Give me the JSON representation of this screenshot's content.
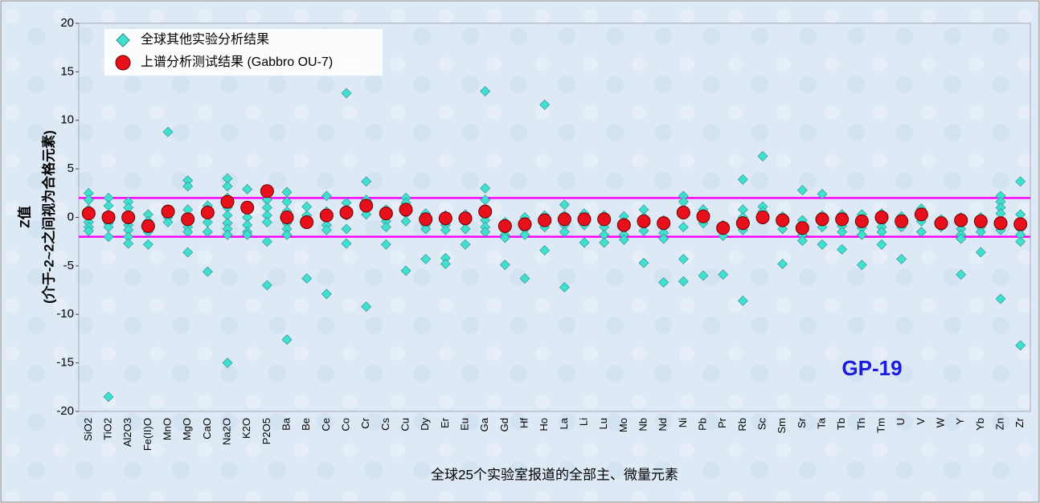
{
  "chart_data": {
    "type": "scatter",
    "ylabel": "Z值",
    "ylabel_note": "(介于-2~2之间视为合格元素)",
    "xlabel": "全球25个实验室报道的全部主、微量元素",
    "annotation": "GP-19",
    "categories": [
      "SiO2",
      "TiO2",
      "Al2O3",
      "Fe(II)O",
      "MnO",
      "MgO",
      "CaO",
      "Na2O",
      "K2O",
      "P2O5",
      "Ba",
      "Be",
      "Ce",
      "Co",
      "Cr",
      "Cs",
      "Cu",
      "Dy",
      "Er",
      "Eu",
      "Ga",
      "Gd",
      "Hf",
      "Ho",
      "La",
      "Li",
      "Lu",
      "Mo",
      "Nb",
      "Nd",
      "Ni",
      "Pb",
      "Pr",
      "Rb",
      "Sc",
      "Sm",
      "Sr",
      "Ta",
      "Tb",
      "Th",
      "Tm",
      "U",
      "V",
      "W",
      "Y",
      "Yb",
      "Zn",
      "Zr"
    ],
    "series": [
      {
        "name": "全球其他实验分析结果",
        "color": "#40e0d0",
        "marker": "diamond",
        "values": [
          [
            2.5,
            1.8,
            0.8,
            -0.5,
            -1.0,
            -1.4
          ],
          [
            2.0,
            1.2,
            -0.6,
            -1.0,
            -2.0,
            -18.5
          ],
          [
            1.6,
            1.0,
            -0.8,
            -1.3,
            -2.0,
            -2.7
          ],
          [
            0.3,
            -0.4,
            -1.5,
            -2.8
          ],
          [
            8.8,
            0.8,
            0.0,
            -0.5
          ],
          [
            3.8,
            3.2,
            0.8,
            -1.0,
            -1.5,
            -3.6
          ],
          [
            1.2,
            0.8,
            -0.5,
            -1.5,
            -5.6
          ],
          [
            4.0,
            3.2,
            2.0,
            1.0,
            0.2,
            -0.6,
            -1.2,
            -1.8,
            -15.0
          ],
          [
            2.9,
            1.0,
            0,
            -0.8,
            -1.5,
            -1.8
          ],
          [
            2.8,
            1.8,
            1.0,
            0.2,
            -0.5,
            -2.5,
            -7.0
          ],
          [
            2.6,
            1.6,
            0.6,
            -0.6,
            -1.2,
            -1.8,
            -12.6
          ],
          [
            1.1,
            0.2,
            -0.6,
            -6.3
          ],
          [
            2.2,
            0.6,
            -0.8,
            -1.3,
            -7.9
          ],
          [
            12.8,
            1.5,
            0.8,
            0.2,
            -1.2,
            -2.7
          ],
          [
            3.7,
            1.8,
            0.3,
            -9.2
          ],
          [
            0.8,
            0.4,
            -0.4,
            -1.0,
            -2.8
          ],
          [
            2.0,
            1.5,
            0.4,
            -0.4,
            -5.5
          ],
          [
            0.4,
            -0.3,
            -0.8,
            -1.2,
            -4.3
          ],
          [
            0.2,
            -0.3,
            -0.8,
            -1.3,
            -4.2,
            -4.8
          ],
          [
            0.3,
            -0.5,
            -1.2,
            -2.8
          ],
          [
            13.0,
            3.0,
            1.8,
            0.4,
            -0.3,
            -1.0,
            -1.5
          ],
          [
            -0.5,
            -1.2,
            -1.8,
            -2.1,
            -4.9
          ],
          [
            0,
            -0.6,
            -1.2,
            -1.8,
            -6.3
          ],
          [
            11.6,
            0.2,
            -0.5,
            -1.0,
            -3.4
          ],
          [
            1.3,
            0.2,
            -0.8,
            -1.5,
            -7.2
          ],
          [
            0.4,
            -0.3,
            -0.8,
            -2.6
          ],
          [
            0.2,
            -0.5,
            -1.0,
            -1.8,
            -2.6
          ],
          [
            0.1,
            -0.5,
            -1.2,
            -1.8,
            -2.3
          ],
          [
            0.8,
            0,
            -0.8,
            -1.4,
            -4.7
          ],
          [
            -0.3,
            -1.0,
            -1.6,
            -2.2,
            -6.7
          ],
          [
            2.2,
            1.6,
            0.3,
            -1.0,
            -4.3,
            -6.6
          ],
          [
            0.8,
            0.2,
            -0.2,
            -0.6,
            -6.0
          ],
          [
            -0.8,
            -1.4,
            -1.9,
            -5.9
          ],
          [
            3.9,
            0.8,
            0,
            -0.5,
            -1.3,
            -8.6
          ],
          [
            6.3,
            1.1,
            0.6,
            -0.2
          ],
          [
            0.1,
            -0.5,
            -1.2,
            -4.8
          ],
          [
            2.8,
            -0.3,
            -1.2,
            -1.8,
            -2.4
          ],
          [
            2.4,
            0.2,
            -0.4,
            -1.0,
            -2.8
          ],
          [
            0.3,
            -0.4,
            -0.9,
            -1.5,
            -3.3
          ],
          [
            0.3,
            -0.6,
            -1.1,
            -1.8,
            -4.9
          ],
          [
            0.4,
            -0.5,
            -1.0,
            -1.5,
            -2.8
          ],
          [
            0.1,
            -0.5,
            -1.0,
            -4.3
          ],
          [
            0.9,
            0.2,
            -0.4,
            -1.5
          ],
          [
            -0.2,
            -0.6,
            -1.0
          ],
          [
            0,
            -0.6,
            -1.2,
            -1.8,
            -2.2,
            -5.9
          ],
          [
            0,
            -0.4,
            -1.0,
            -1.5,
            -3.6
          ],
          [
            2.2,
            1.6,
            1.0,
            0.4,
            -0.6,
            -1.3,
            -8.4
          ],
          [
            3.7,
            0.3,
            -1.2,
            -1.8,
            -2.5,
            -13.2
          ]
        ]
      },
      {
        "name": "上谱分析测试结果 (Gabbro OU-7)",
        "color": "#e8101a",
        "marker": "circle",
        "values": [
          0.4,
          0,
          0,
          -0.9,
          0.6,
          -0.2,
          0.5,
          1.6,
          1.0,
          2.7,
          0,
          -0.5,
          0.2,
          0.5,
          1.2,
          0.4,
          0.8,
          -0.2,
          -0.1,
          -0.1,
          0.6,
          -0.9,
          -0.7,
          -0.3,
          -0.2,
          -0.2,
          -0.2,
          -0.8,
          -0.4,
          -0.6,
          0.5,
          0.1,
          -1.1,
          -0.6,
          0,
          -0.3,
          -1.1,
          -0.2,
          -0.2,
          -0.4,
          0,
          -0.4,
          0.3,
          -0.6,
          -0.3,
          -0.4,
          -0.6,
          -0.7
        ]
      }
    ],
    "ref_lines": [
      2,
      -2
    ],
    "ref_color": "#ff00ff",
    "ylim": [
      -20,
      20
    ],
    "yticks": [
      -20,
      -15,
      -10,
      -5,
      0,
      5,
      10,
      15,
      20
    ]
  }
}
